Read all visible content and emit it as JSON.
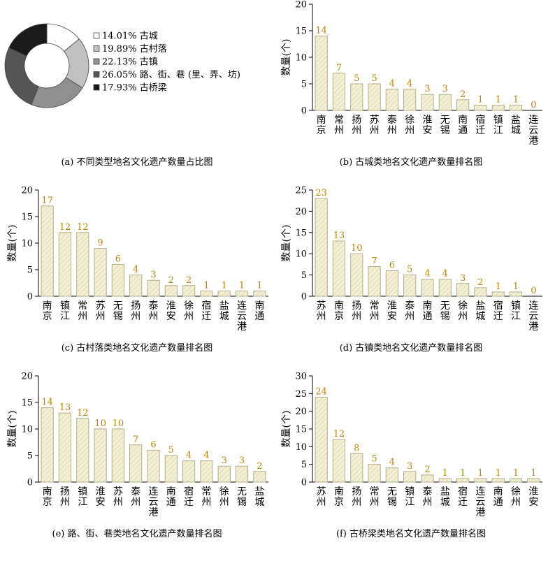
{
  "colors": {
    "bar_fill": "#f3efd5",
    "bar_stroke": "#b5ae86",
    "hatch": "#d6cfa6",
    "value_text": "#b8860b",
    "axis": "#000000"
  },
  "chart_data": [
    {
      "id": "a",
      "type": "pie",
      "caption": "(a) 不同类型地名文化遗产数量占比图",
      "slices": [
        {
          "label": "14.01% 古城",
          "value": 14.01,
          "color": "#ffffff"
        },
        {
          "label": "19.89% 古村落",
          "value": 19.89,
          "color": "#c0c0c0"
        },
        {
          "label": "22.13% 古镇",
          "value": 22.13,
          "color": "#8f8f8f"
        },
        {
          "label": "26.05% 路、街、巷 (里、弄、坊)",
          "value": 26.05,
          "color": "#555555"
        },
        {
          "label": "17.93% 古桥梁",
          "value": 17.93,
          "color": "#1a1a1a"
        }
      ]
    },
    {
      "id": "b",
      "type": "bar",
      "caption": "(b) 古城类地名文化遗产数量排名图",
      "ylabel": "数量(个)",
      "ylim": [
        0,
        20
      ],
      "yticks": [
        0,
        5,
        10,
        15,
        20
      ],
      "categories": [
        "南京",
        "常州",
        "扬州",
        "苏州",
        "泰州",
        "徐州",
        "淮安",
        "无锡",
        "南通",
        "宿迁",
        "镇江",
        "盐城",
        "连云港"
      ],
      "values": [
        14,
        7,
        5,
        5,
        4,
        4,
        3,
        3,
        2,
        1,
        1,
        1,
        0
      ]
    },
    {
      "id": "c",
      "type": "bar",
      "caption": "(c) 古村落类地名文化遗产数量排名图",
      "ylabel": "数量(个)",
      "ylim": [
        0,
        20
      ],
      "yticks": [
        0,
        5,
        10,
        15,
        20
      ],
      "categories": [
        "南京",
        "镇江",
        "常州",
        "苏州",
        "无锡",
        "扬州",
        "泰州",
        "淮安",
        "徐州",
        "宿迁",
        "盐城",
        "连云港",
        "南通"
      ],
      "values": [
        17,
        12,
        12,
        9,
        6,
        4,
        3,
        2,
        2,
        1,
        1,
        1,
        1
      ]
    },
    {
      "id": "d",
      "type": "bar",
      "caption": "(d) 古镇类地名文化遗产数量排名图",
      "ylabel": "数量(个)",
      "ylim": [
        0,
        25
      ],
      "yticks": [
        0,
        5,
        10,
        15,
        20,
        25
      ],
      "categories": [
        "苏州",
        "南京",
        "扬州",
        "常州",
        "淮安",
        "泰州",
        "南通",
        "无锡",
        "徐州",
        "盐城",
        "宿迁",
        "镇江",
        "连云港"
      ],
      "values": [
        23,
        13,
        10,
        7,
        6,
        5,
        4,
        4,
        3,
        2,
        1,
        1,
        0
      ]
    },
    {
      "id": "e",
      "type": "bar",
      "caption": "(e) 路、街、巷类地名文化遗产数量排名图",
      "ylabel": "数量(个)",
      "ylim": [
        0,
        20
      ],
      "yticks": [
        0,
        5,
        10,
        15,
        20
      ],
      "categories": [
        "南京",
        "扬州",
        "镇江",
        "淮安",
        "苏州",
        "泰州",
        "连云港",
        "南通",
        "宿迁",
        "常州",
        "徐州",
        "无锡",
        "盐城"
      ],
      "values": [
        14,
        13,
        12,
        10,
        10,
        7,
        6,
        5,
        4,
        4,
        3,
        3,
        2
      ]
    },
    {
      "id": "f",
      "type": "bar",
      "caption": "(f) 古桥梁类地名文化遗产数量排名图",
      "ylabel": "数量(个)",
      "ylim": [
        0,
        30
      ],
      "yticks": [
        0,
        5,
        10,
        15,
        20,
        25,
        30
      ],
      "categories": [
        "苏州",
        "南京",
        "扬州",
        "常州",
        "无锡",
        "镇江",
        "泰州",
        "盐城",
        "宿迁",
        "连云港",
        "南通",
        "徐州",
        "淮安"
      ],
      "values": [
        24,
        12,
        8,
        5,
        4,
        3,
        2,
        1,
        1,
        1,
        1,
        1,
        1
      ]
    }
  ]
}
